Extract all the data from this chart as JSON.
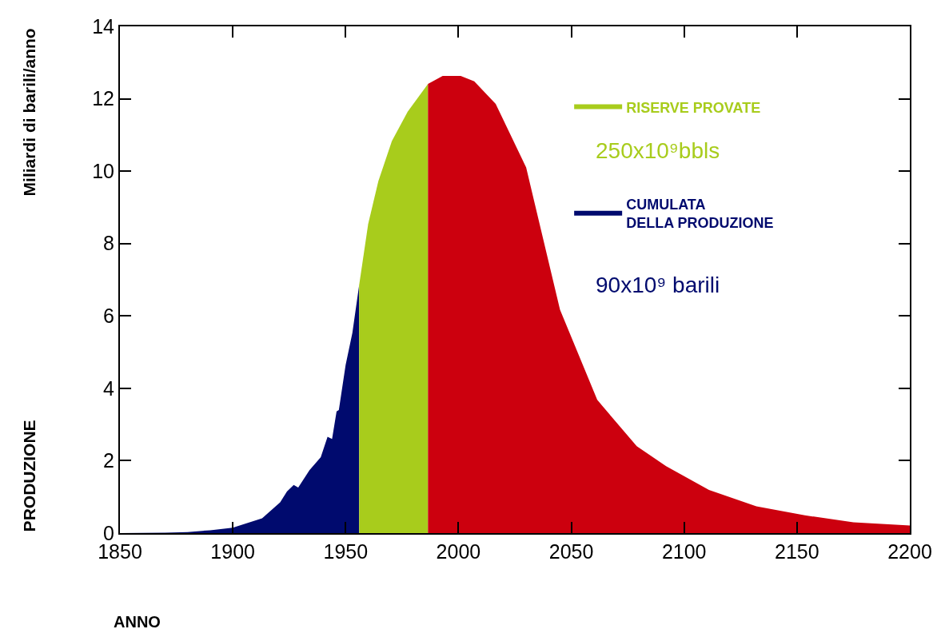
{
  "chart_data": {
    "type": "area",
    "xlabel": "ANNO",
    "ylabel": "PRODUZIONE",
    "annotations": [
      "Miliardi di barili/anno",
      "250x10⁹bbls",
      "90x10⁹ barili"
    ],
    "series": [
      {
        "name": "CUMULATA\nDELLA PRODUZIONE",
        "color": "#000a6e",
        "x": [
          1850,
          1870,
          1880,
          1890,
          1900,
          1913,
          1921,
          1924,
          1927,
          1929,
          1934,
          1939,
          1942,
          1944,
          1946,
          1947,
          1950,
          1953,
          1956
        ],
        "values": [
          0,
          0.01,
          0.03,
          0.08,
          0.15,
          0.41,
          0.85,
          1.15,
          1.33,
          1.26,
          1.74,
          2.1,
          2.66,
          2.6,
          3.36,
          3.4,
          4.64,
          5.53,
          6.85
        ]
      },
      {
        "name": "RISERVE PROVATE",
        "color": "#a8cc1c",
        "x": [
          1956,
          1960,
          1964.5,
          1970.5,
          1977.5,
          1986.5
        ],
        "values": [
          6.85,
          8.54,
          9.72,
          10.83,
          11.64,
          12.41
        ]
      },
      {
        "color": "#cc000e",
        "x": [
          1986.5,
          1993,
          2001,
          2007,
          2016.5,
          2030,
          2045,
          2061.5,
          2079,
          2092,
          2111,
          2132,
          2153.5,
          2175,
          2200
        ],
        "values": [
          12.41,
          12.63,
          12.63,
          12.48,
          11.86,
          10.1,
          6.17,
          3.68,
          2.4,
          1.85,
          1.19,
          0.74,
          0.49,
          0.3,
          0.21
        ]
      }
    ],
    "xlim": [
      1850,
      2200
    ],
    "xticks": [
      1850,
      1900,
      1950,
      2000,
      2050,
      2100,
      2150,
      2200
    ],
    "ylim": [
      0,
      14
    ],
    "yticks": [
      0,
      2,
      4,
      6,
      8,
      10,
      12,
      14
    ],
    "legend": "top right"
  }
}
